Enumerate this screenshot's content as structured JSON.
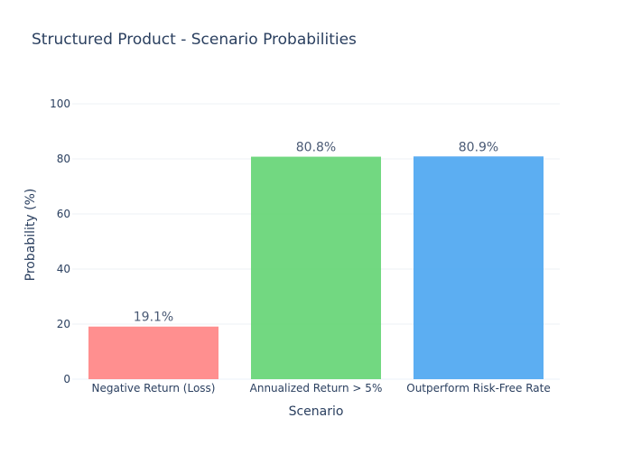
{
  "chart_data": {
    "type": "bar",
    "title": "Structured Product - Scenario Probabilities",
    "xlabel": "Scenario",
    "ylabel": "Probability (%)",
    "categories": [
      "Negative Return (Loss)",
      "Annualized Return > 5%",
      "Outperform Risk-Free Rate"
    ],
    "values": [
      19.1,
      80.8,
      80.9
    ],
    "data_labels": [
      "19.1%",
      "80.8%",
      "80.9%"
    ],
    "bar_colors": [
      "#ff7f7f",
      "#5fd36f",
      "#45a3f0"
    ],
    "ylim": [
      0,
      100
    ],
    "yticks": [
      0,
      20,
      40,
      60,
      80,
      100
    ],
    "grid": true,
    "legend": "none"
  }
}
